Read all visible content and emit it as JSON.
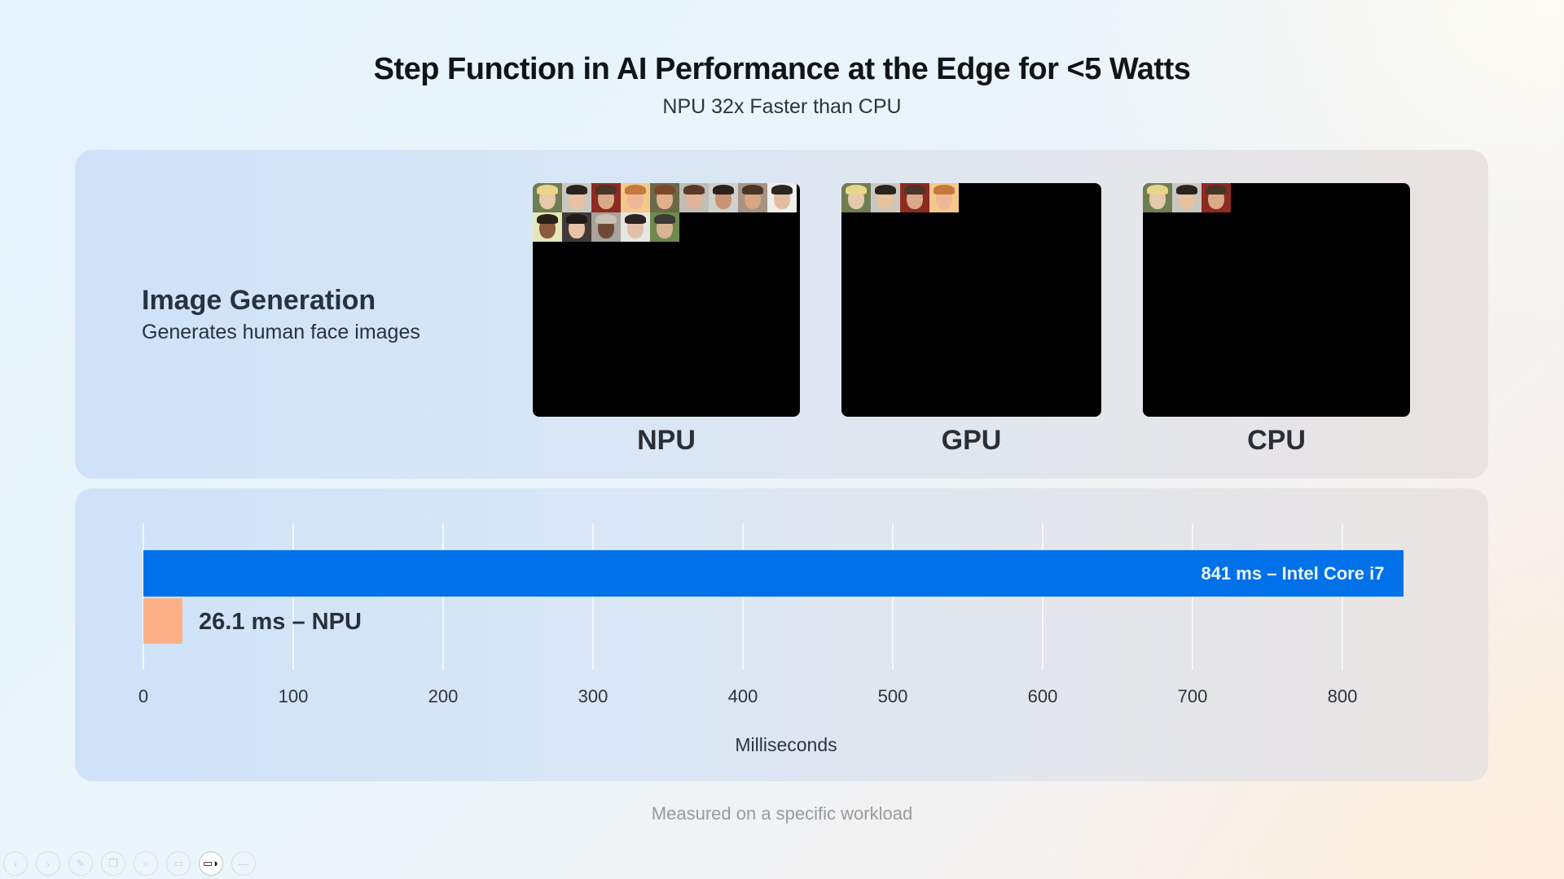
{
  "slide": {
    "title": "Step Function in AI Performance at the Edge for <5 Watts",
    "subtitle": "NPU 32x Faster than CPU",
    "footnote": "Measured on a specific workload"
  },
  "task": {
    "title": "Image Generation",
    "description": "Generates human face images"
  },
  "generators": [
    {
      "label": "NPU",
      "faces_generated": 14,
      "faces_per_row": 9
    },
    {
      "label": "GPU",
      "faces_generated": 4
    },
    {
      "label": "CPU",
      "faces_generated": 3
    }
  ],
  "chart_data": {
    "type": "bar",
    "orientation": "horizontal",
    "title": "",
    "xlabel": "Milliseconds",
    "ylabel": "",
    "xlim": [
      0,
      841
    ],
    "grid": true,
    "x_ticks": [
      0,
      100,
      200,
      300,
      400,
      500,
      600,
      700,
      800
    ],
    "categories": [
      "Intel Core i7",
      "NPU"
    ],
    "values": [
      841,
      26.1
    ],
    "bar_labels": [
      "841 ms – Intel Core i7",
      "26.1 ms – NPU"
    ],
    "colors": [
      "#0071e9",
      "#fcb088"
    ],
    "legend": null
  },
  "chart_labels": {
    "cpu_bar": "841 ms – Intel Core i7",
    "npu_bar": "26.1 ms – NPU",
    "ticks": [
      "0",
      "100",
      "200",
      "300",
      "400",
      "500",
      "600",
      "700",
      "800"
    ],
    "axis_title": "Milliseconds"
  },
  "toolbar": {
    "buttons": [
      {
        "name": "previous",
        "glyph": "‹"
      },
      {
        "name": "next",
        "glyph": "›"
      },
      {
        "name": "pen",
        "glyph": "✎"
      },
      {
        "name": "slides",
        "glyph": "❐"
      },
      {
        "name": "zoom",
        "glyph": "⌕"
      },
      {
        "name": "subtitles",
        "glyph": "▭"
      },
      {
        "name": "camera",
        "glyph": "▭◗"
      },
      {
        "name": "more",
        "glyph": "—"
      }
    ]
  }
}
